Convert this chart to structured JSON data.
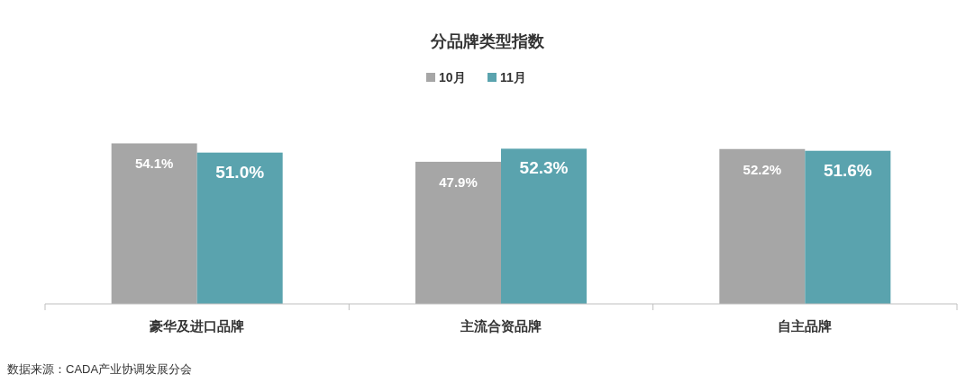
{
  "chart_data": {
    "type": "bar",
    "title": "分品牌类型指数",
    "categories": [
      "豪华及进口品牌",
      "主流合资品牌",
      "自主品牌"
    ],
    "series": [
      {
        "name": "10月",
        "color": "#a6a6a6",
        "values": [
          54.1,
          47.9,
          52.2
        ],
        "value_labels": [
          "54.1%",
          "47.9%",
          "52.2%"
        ]
      },
      {
        "name": "11月",
        "color": "#5aa3ae",
        "values": [
          51.0,
          52.3,
          51.6
        ],
        "value_labels": [
          "51.0%",
          "52.3%",
          "51.6%"
        ]
      }
    ],
    "legend": "top",
    "annotations": [
      "数据来源：CADA产业协调发展分会"
    ]
  }
}
